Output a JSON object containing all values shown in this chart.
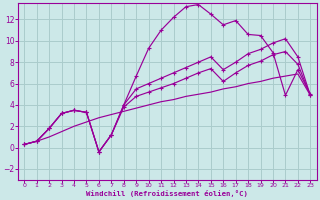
{
  "background_color": "#cce8e8",
  "grid_color": "#aacccc",
  "line_color": "#990099",
  "xlabel": "Windchill (Refroidissement éolien,°C)",
  "xlim": [
    -0.5,
    23.5
  ],
  "ylim": [
    -3.0,
    13.5
  ],
  "yticks": [
    -2,
    0,
    2,
    4,
    6,
    8,
    10,
    12
  ],
  "xticks": [
    0,
    1,
    2,
    3,
    4,
    5,
    6,
    7,
    8,
    9,
    10,
    11,
    12,
    13,
    14,
    15,
    16,
    17,
    18,
    19,
    20,
    21,
    22,
    23
  ],
  "curve1_x": [
    0,
    1,
    2,
    3,
    4,
    5,
    6,
    7,
    8,
    9,
    10,
    11,
    12,
    13,
    14,
    15,
    16,
    17,
    18,
    19,
    20,
    21,
    22,
    23
  ],
  "curve1_y": [
    0.3,
    0.6,
    1.8,
    3.2,
    3.5,
    3.3,
    -0.4,
    1.2,
    4.0,
    6.7,
    9.3,
    11.0,
    12.2,
    13.2,
    13.4,
    12.5,
    11.5,
    11.9,
    10.6,
    10.5,
    8.9,
    4.9,
    7.3,
    5.0
  ],
  "curve2_x": [
    0,
    1,
    2,
    3,
    4,
    5,
    6,
    7,
    8,
    9,
    10,
    11,
    12,
    13,
    14,
    15,
    16,
    17,
    18,
    19,
    20,
    21,
    22,
    23
  ],
  "curve2_y": [
    0.3,
    0.6,
    1.8,
    3.2,
    3.5,
    3.3,
    -0.4,
    1.2,
    4.0,
    5.5,
    6.0,
    6.5,
    7.0,
    7.5,
    8.0,
    8.5,
    7.3,
    8.0,
    8.8,
    9.2,
    9.8,
    10.2,
    8.5,
    4.9
  ],
  "curve3_x": [
    0,
    1,
    2,
    3,
    4,
    5,
    6,
    7,
    8,
    9,
    10,
    11,
    12,
    13,
    14,
    15,
    16,
    17,
    18,
    19,
    20,
    21,
    22,
    23
  ],
  "curve3_y": [
    0.3,
    0.6,
    1.8,
    3.2,
    3.5,
    3.3,
    -0.4,
    1.2,
    3.8,
    4.8,
    5.2,
    5.6,
    6.0,
    6.5,
    7.0,
    7.4,
    6.2,
    7.0,
    7.7,
    8.1,
    8.7,
    9.0,
    7.8,
    4.9
  ],
  "line_x": [
    0,
    1,
    2,
    3,
    4,
    5,
    6,
    7,
    8,
    9,
    10,
    11,
    12,
    13,
    14,
    15,
    16,
    17,
    18,
    19,
    20,
    21,
    22,
    23
  ],
  "line_y": [
    0.3,
    0.6,
    1.0,
    1.5,
    2.0,
    2.4,
    2.8,
    3.1,
    3.4,
    3.7,
    4.0,
    4.3,
    4.5,
    4.8,
    5.0,
    5.2,
    5.5,
    5.7,
    6.0,
    6.2,
    6.5,
    6.7,
    6.9,
    4.9
  ]
}
